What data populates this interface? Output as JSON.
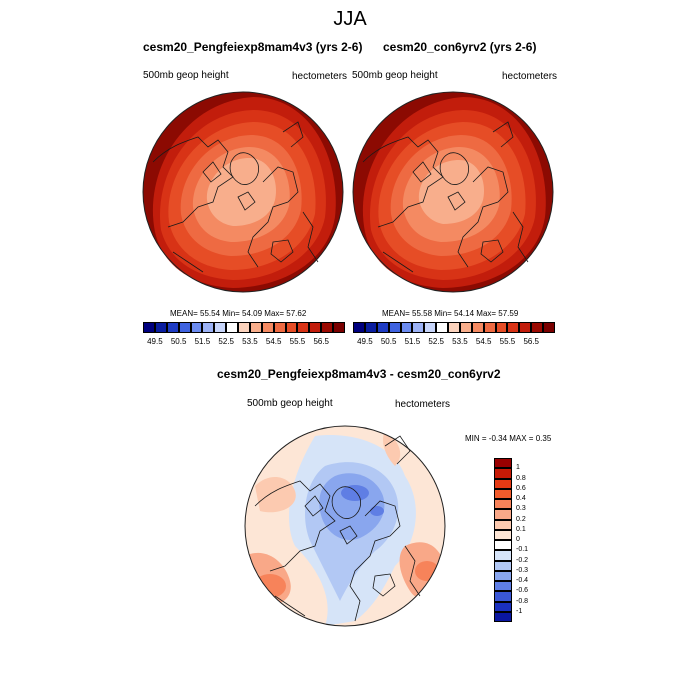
{
  "title": "JJA",
  "panels": [
    {
      "title": "cesm20_Pengfeiexp8mam4v3 (yrs 2-6)",
      "left_label": "500mb geop height",
      "right_label": "hectometers",
      "stats": "MEAN=  55.54  Min=  54.09  Max=  57.62"
    },
    {
      "title": "cesm20_con6yrv2 (yrs 2-6)",
      "left_label": "500mb geop height",
      "right_label": "hectometers",
      "stats": "MEAN=  55.58  Min=  54.14  Max=  57.59"
    }
  ],
  "top_colorbar": {
    "tick_labels": [
      "49.5",
      "50.5",
      "51.5",
      "52.5",
      "53.5",
      "54.5",
      "55.5",
      "56.5"
    ],
    "colors": [
      "#00007f",
      "#0a1ea0",
      "#1f3cc4",
      "#3f63e0",
      "#6c8cf0",
      "#9cb2f5",
      "#c7d5fa",
      "#ffffff",
      "#fcd3bd",
      "#f8ae8c",
      "#f48a62",
      "#ee6a42",
      "#e64d26",
      "#d83316",
      "#c21d0c",
      "#9b0a02",
      "#7a0000"
    ]
  },
  "diff_panel": {
    "title": "cesm20_Pengfeiexp8mam4v3 - cesm20_con6yrv2",
    "left_label": "500mb geop height",
    "right_label": "hectometers",
    "minmax": "MIN =  -0.34 MAX =   0.35"
  },
  "diff_colorbar": {
    "labels": [
      "1",
      "0.8",
      "0.6",
      "0.4",
      "0.3",
      "0.2",
      "0.1",
      "0",
      "-0.1",
      "-0.2",
      "-0.3",
      "-0.4",
      "-0.6",
      "-0.8",
      "-1"
    ],
    "colors": [
      "#990000",
      "#c61a06",
      "#e53a14",
      "#f25c2c",
      "#f7835a",
      "#f9a888",
      "#fccab0",
      "#fde6d6",
      "#ffffff",
      "#d6e4f8",
      "#b2c8f4",
      "#89a6ee",
      "#5f7ee4",
      "#3a57d6",
      "#1a30be",
      "#0a16a0"
    ]
  }
}
